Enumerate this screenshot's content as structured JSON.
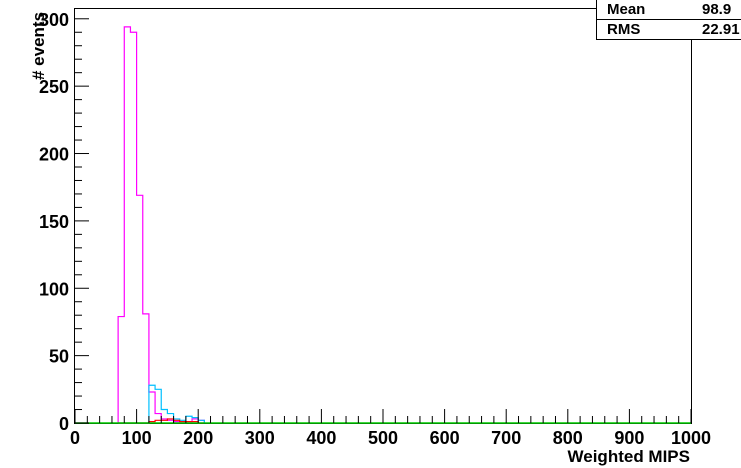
{
  "chart_data": {
    "type": "histogram",
    "xlabel": "Weighted MIPS",
    "ylabel": "# events",
    "xlim": [
      0,
      1000
    ],
    "ylim": [
      0,
      308
    ],
    "x_ticks": [
      0,
      100,
      200,
      300,
      400,
      500,
      600,
      700,
      800,
      900,
      1000
    ],
    "y_ticks": [
      0,
      50,
      100,
      150,
      200,
      250,
      300
    ],
    "bin_width": 10,
    "bin_start": 70,
    "stats": {
      "mean_label": "Mean",
      "mean_value": "98.9",
      "rms_label": "RMS",
      "rms_value": "22.91"
    },
    "series": [
      {
        "color": "#ff00ff",
        "values": [
          79,
          294,
          290,
          169,
          81,
          23,
          7,
          3,
          2,
          1,
          1,
          1,
          3,
          2
        ]
      },
      {
        "color": "#00bfff",
        "values": [
          0,
          0,
          0,
          0,
          0,
          28,
          25,
          10,
          7,
          3,
          2,
          5,
          4,
          2
        ]
      },
      {
        "color": "#ff0000",
        "values": [
          0,
          0,
          0,
          0,
          0,
          1,
          2,
          2,
          3,
          2,
          1,
          1,
          1,
          0
        ]
      },
      {
        "color": "#00cc00",
        "values": []
      }
    ]
  }
}
